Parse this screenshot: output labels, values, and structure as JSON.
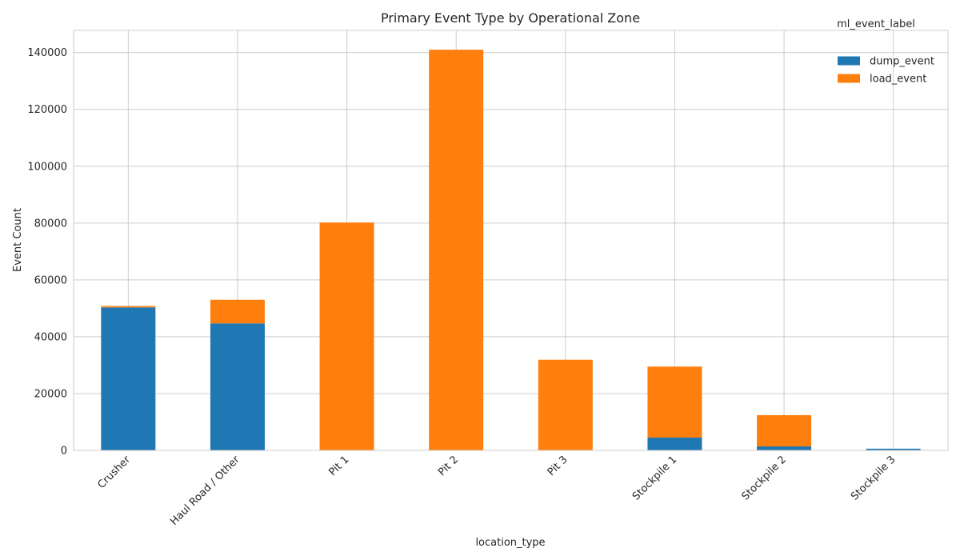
{
  "chart_data": {
    "type": "bar",
    "stacked": true,
    "title": "Primary Event Type by Operational Zone",
    "xlabel": "location_type",
    "ylabel": "Event Count",
    "categories": [
      "Crusher",
      "Haul Road / Other",
      "Pit 1",
      "Pit 2",
      "Pit 3",
      "Stockpile 1",
      "Stockpile 2",
      "Stockpile 3"
    ],
    "series": [
      {
        "name": "dump_event",
        "color": "#1f77b4",
        "values": [
          50300,
          44700,
          0,
          0,
          0,
          4500,
          1400,
          600
        ]
      },
      {
        "name": "load_event",
        "color": "#ff7f0e",
        "values": [
          500,
          8300,
          80200,
          141000,
          31900,
          25000,
          11000,
          0
        ]
      }
    ],
    "ylim": [
      0,
      147800
    ],
    "yticks": [
      "0",
      "20000",
      "40000",
      "60000",
      "80000",
      "100000",
      "120000",
      "140000"
    ],
    "legend_title": "ml_event_label",
    "legend_position": "top-right",
    "grid": true
  }
}
